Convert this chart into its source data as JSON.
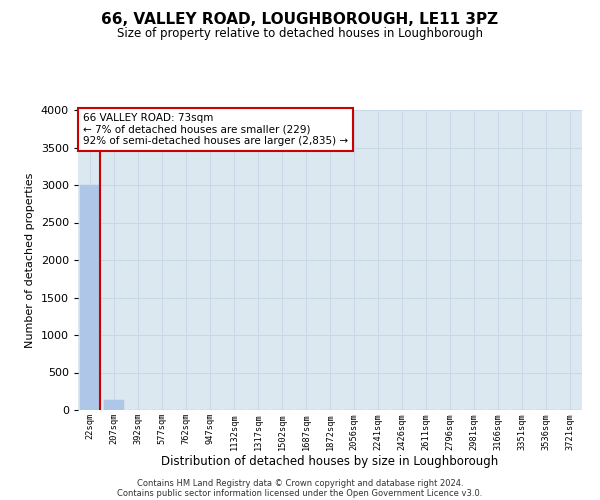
{
  "title": "66, VALLEY ROAD, LOUGHBOROUGH, LE11 3PZ",
  "subtitle": "Size of property relative to detached houses in Loughborough",
  "xlabel": "Distribution of detached houses by size in Loughborough",
  "ylabel": "Number of detached properties",
  "categories": [
    "22sqm",
    "207sqm",
    "392sqm",
    "577sqm",
    "762sqm",
    "947sqm",
    "1132sqm",
    "1317sqm",
    "1502sqm",
    "1687sqm",
    "1872sqm",
    "2056sqm",
    "2241sqm",
    "2426sqm",
    "2611sqm",
    "2796sqm",
    "2981sqm",
    "3166sqm",
    "3351sqm",
    "3536sqm",
    "3721sqm"
  ],
  "values": [
    3000,
    130,
    5,
    3,
    2,
    1,
    1,
    1,
    1,
    1,
    1,
    1,
    1,
    1,
    1,
    1,
    1,
    1,
    1,
    1,
    1
  ],
  "bar_color": "#aec6e8",
  "bar_edge_color": "#aec6e8",
  "vline_color": "#cc0000",
  "vline_x": 0.4,
  "annotation_text_line1": "66 VALLEY ROAD: 73sqm",
  "annotation_text_line2": "← 7% of detached houses are smaller (229)",
  "annotation_text_line3": "92% of semi-detached houses are larger (2,835) →",
  "annotation_box_color": "#cc0000",
  "ylim": [
    0,
    4000
  ],
  "yticks": [
    0,
    500,
    1000,
    1500,
    2000,
    2500,
    3000,
    3500,
    4000
  ],
  "grid_color": "#c8d8e8",
  "background_color": "#dce8f0",
  "footer_line1": "Contains HM Land Registry data © Crown copyright and database right 2024.",
  "footer_line2": "Contains public sector information licensed under the Open Government Licence v3.0."
}
